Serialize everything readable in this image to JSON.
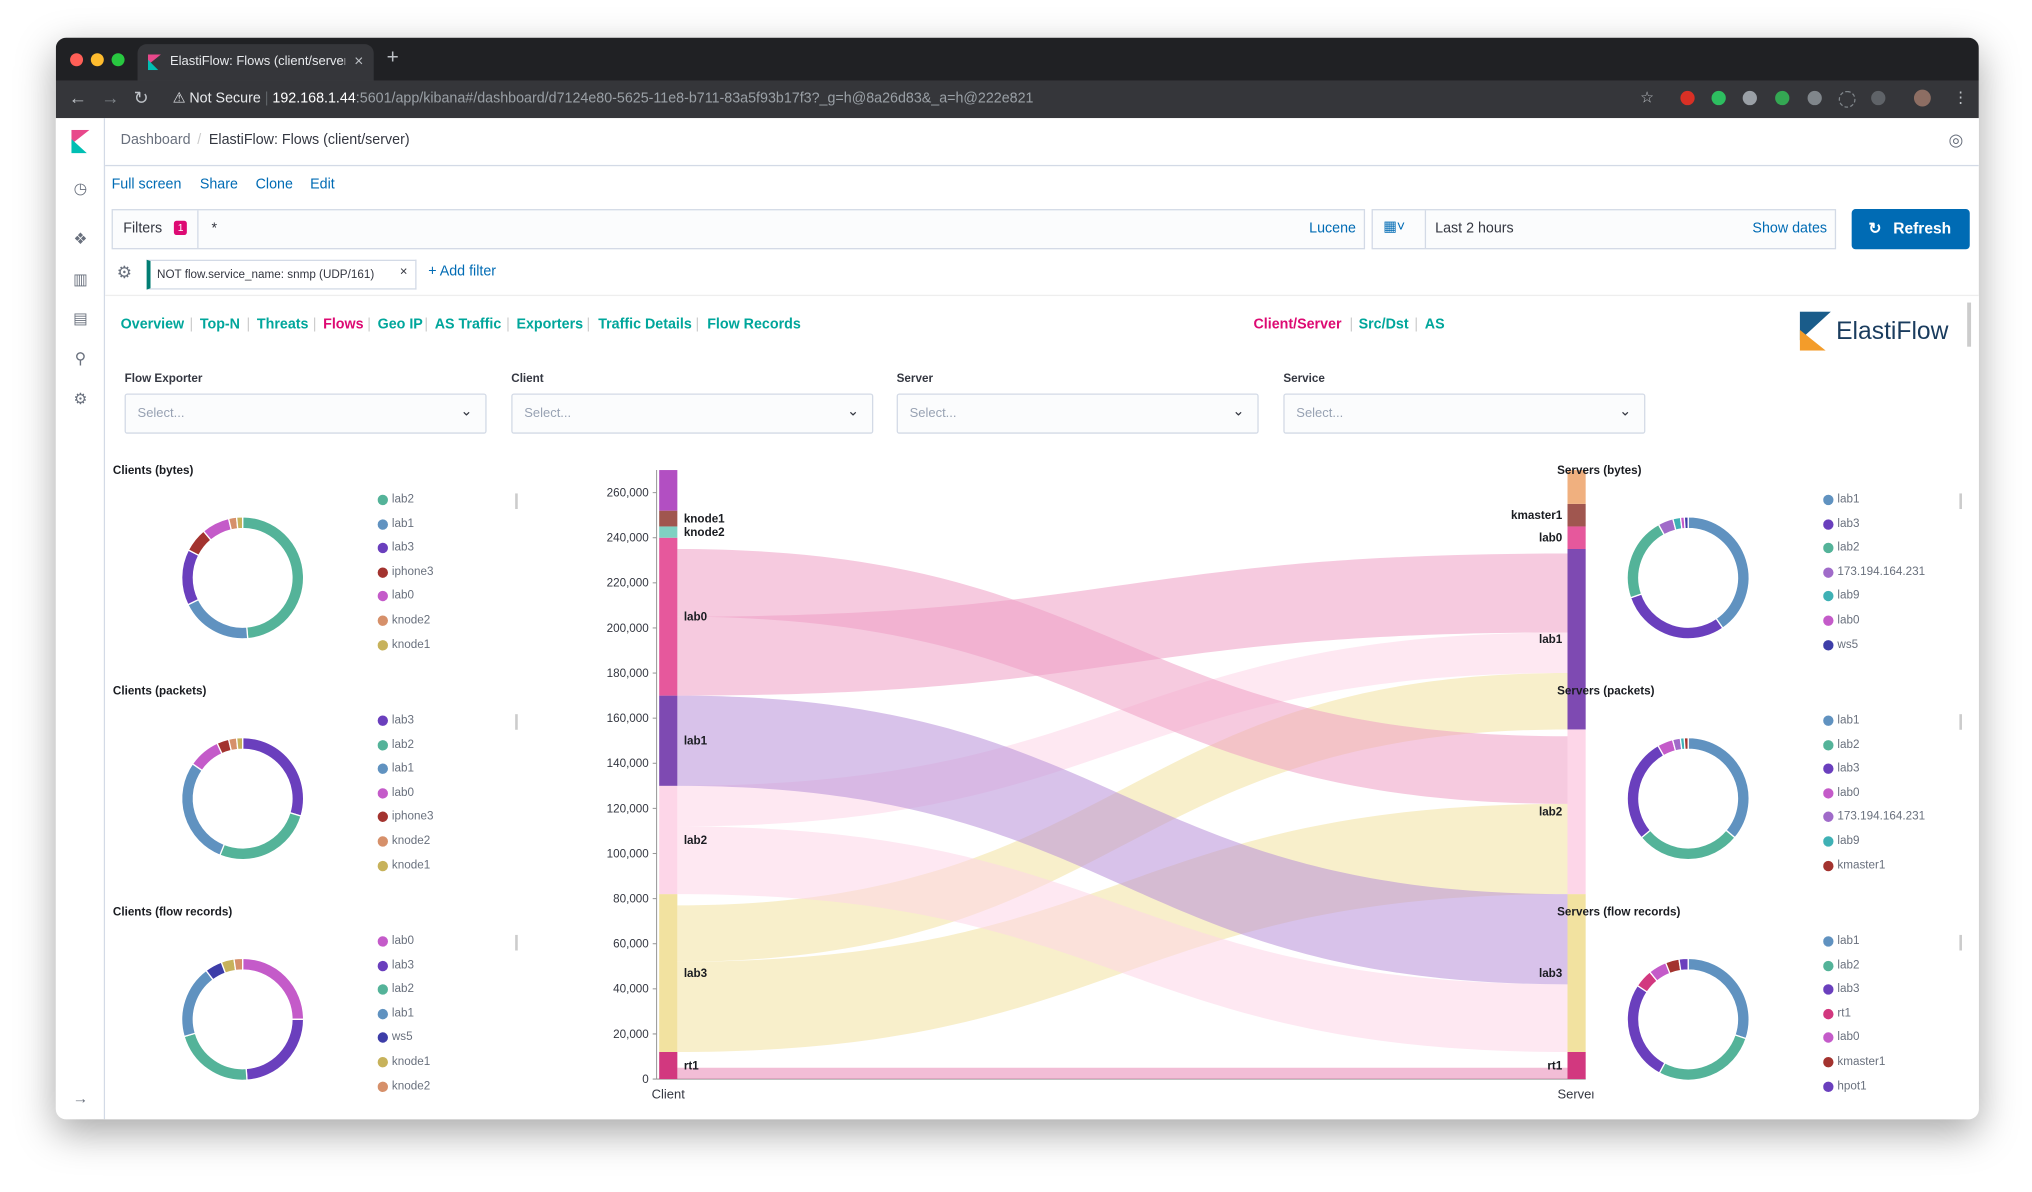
{
  "browser": {
    "tab_title": "ElastiFlow: Flows (client/server",
    "new_tab": "+",
    "security": "Not Secure",
    "url_host": "192.168.1.44",
    "url_path": ":5601/app/kibana#/dashboard/d7124e80-5625-11e8-b711-83a5f93b17f3?_g=h@8a26d83&_a=h@222e821"
  },
  "breadcrumb": {
    "root": "Dashboard",
    "current": "ElastiFlow: Flows (client/server)"
  },
  "menu": {
    "fullscreen": "Full screen",
    "share": "Share",
    "clone": "Clone",
    "edit": "Edit"
  },
  "query": {
    "filters_label": "Filters",
    "filters_count": "1",
    "value": "*",
    "language": "Lucene"
  },
  "time": {
    "range": "Last 2 hours",
    "show_dates": "Show dates",
    "refresh": "Refresh"
  },
  "filter_pill": {
    "text": "NOT flow.service_name: snmp (UDP/161)",
    "add": "+ Add filter"
  },
  "dash_nav": {
    "left": [
      "Overview",
      "Top-N",
      "Threats",
      "Flows",
      "Geo IP",
      "AS Traffic",
      "Exporters",
      "Traffic Details",
      "Flow Records"
    ],
    "active": "Flows",
    "right": [
      "Client/Server",
      "Src/Dst",
      "AS"
    ],
    "right_active": "Client/Server",
    "logo": "ElastiFlow"
  },
  "controls": [
    {
      "label": "Flow Exporter",
      "placeholder": "Select..."
    },
    {
      "label": "Client",
      "placeholder": "Select..."
    },
    {
      "label": "Server",
      "placeholder": "Select..."
    },
    {
      "label": "Service",
      "placeholder": "Select..."
    }
  ],
  "colors": {
    "link": "#006bb4",
    "accent": "#00a69b",
    "active": "#dd0a73",
    "refresh": "#006bb4"
  },
  "chart_data": [
    {
      "type": "pie",
      "title": "Clients (bytes)",
      "donut": true,
      "labels": [
        "lab2",
        "lab1",
        "lab3",
        "iphone3",
        "lab0",
        "knode2",
        "knode1"
      ],
      "values": [
        46,
        18,
        14,
        6,
        7,
        2,
        1.5
      ],
      "colors": [
        "#54b399",
        "#6092c0",
        "#6a3fbd",
        "#a3332f",
        "#c45bc9",
        "#d6906a",
        "#c7b25b"
      ]
    },
    {
      "type": "pie",
      "title": "Clients (packets)",
      "donut": true,
      "labels": [
        "lab3",
        "lab2",
        "lab1",
        "lab0",
        "iphone3",
        "knode2",
        "knode1"
      ],
      "values": [
        28,
        25,
        27,
        8,
        3,
        2,
        1.5
      ],
      "colors": [
        "#6a3fbd",
        "#54b399",
        "#6092c0",
        "#c45bc9",
        "#a3332f",
        "#d6906a",
        "#c7b25b"
      ]
    },
    {
      "type": "pie",
      "title": "Clients (flow records)",
      "donut": true,
      "labels": [
        "lab0",
        "lab3",
        "lab2",
        "lab1",
        "ws5",
        "knode1",
        "knode2"
      ],
      "values": [
        22,
        21,
        19,
        17,
        4,
        3,
        2
      ],
      "colors": [
        "#c45bc9",
        "#6a3fbd",
        "#54b399",
        "#6092c0",
        "#3d3da8",
        "#c7b25b",
        "#d6906a"
      ]
    },
    {
      "type": "pie",
      "title": "Servers (bytes)",
      "donut": true,
      "labels": [
        "lab1",
        "lab3",
        "lab2",
        "173.194.164.231",
        "lab9",
        "lab0",
        "ws5"
      ],
      "values": [
        40,
        29,
        22,
        4,
        2,
        1,
        1
      ],
      "colors": [
        "#6092c0",
        "#6a3fbd",
        "#54b399",
        "#a06bc9",
        "#3fb1b5",
        "#c45bc9",
        "#3d3da8"
      ]
    },
    {
      "type": "pie",
      "title": "Servers (packets)",
      "donut": true,
      "labels": [
        "lab1",
        "lab2",
        "lab3",
        "lab0",
        "173.194.164.231",
        "lab9",
        "kmaster1"
      ],
      "values": [
        35,
        27,
        27,
        4,
        2,
        1,
        1
      ],
      "colors": [
        "#6092c0",
        "#54b399",
        "#6a3fbd",
        "#c45bc9",
        "#a06bc9",
        "#3fb1b5",
        "#a3332f"
      ]
    },
    {
      "type": "pie",
      "title": "Servers (flow records)",
      "donut": true,
      "labels": [
        "lab1",
        "lab2",
        "lab3",
        "rt1",
        "lab0",
        "kmaster1",
        "hpot1"
      ],
      "values": [
        25,
        23,
        22,
        4,
        4,
        3,
        2
      ],
      "colors": [
        "#6092c0",
        "#54b399",
        "#6a3fbd",
        "#d2387f",
        "#c45bc9",
        "#a3332f",
        "#6a3fbd"
      ]
    },
    {
      "type": "sankey",
      "x_labels": [
        "Client",
        "Server"
      ],
      "ylim": [
        0,
        270000
      ],
      "yticks": [
        "0",
        "20,000",
        "40,000",
        "60,000",
        "80,000",
        "100,000",
        "120,000",
        "140,000",
        "160,000",
        "180,000",
        "200,000",
        "220,000",
        "240,000",
        "260,000"
      ],
      "ytick_values": [
        0,
        20000,
        40000,
        60000,
        80000,
        100000,
        120000,
        140000,
        160000,
        180000,
        200000,
        220000,
        240000,
        260000
      ],
      "left_nodes": [
        {
          "name": "rt1",
          "value": 12000,
          "color": "#d2387f"
        },
        {
          "name": "lab3",
          "value": 70000,
          "color": "#f2e2a0"
        },
        {
          "name": "lab2",
          "value": 48000,
          "color": "#fdd6e8"
        },
        {
          "name": "lab1",
          "value": 40000,
          "color": "#7e4ab2"
        },
        {
          "name": "lab0",
          "value": 70000,
          "color": "#e6589c"
        },
        {
          "name": "knode2",
          "value": 5000,
          "color": "#7fd1c2"
        },
        {
          "name": "knode1",
          "value": 7000,
          "color": "#a0564f"
        },
        {
          "name": "",
          "value": 18000,
          "color": "#b24fc2"
        }
      ],
      "right_nodes": [
        {
          "name": "rt1",
          "value": 12000,
          "color": "#d2387f"
        },
        {
          "name": "lab3",
          "value": 70000,
          "color": "#f2e2a0"
        },
        {
          "name": "lab2",
          "value": 73000,
          "color": "#fdd6e8"
        },
        {
          "name": "lab1",
          "value": 80000,
          "color": "#7e4ab2"
        },
        {
          "name": "lab0",
          "value": 10000,
          "color": "#e6589c"
        },
        {
          "name": "kmaster1",
          "value": 10000,
          "color": "#a0564f"
        },
        {
          "name": "",
          "value": 15000,
          "color": "#f0b07f"
        }
      ],
      "links": [
        {
          "from": "lab3",
          "to": "lab2",
          "value": 40000,
          "color": "#f2e2a0"
        },
        {
          "from": "lab3",
          "to": "lab1",
          "value": 25000,
          "color": "#f2e2a0"
        },
        {
          "from": "lab2",
          "to": "lab3",
          "value": 30000,
          "color": "#fdd6e8"
        },
        {
          "from": "lab2",
          "to": "lab1",
          "value": 18000,
          "color": "#fdd6e8"
        },
        {
          "from": "lab1",
          "to": "lab3",
          "value": 40000,
          "color": "#b890d8"
        },
        {
          "from": "lab0",
          "to": "lab1",
          "value": 35000,
          "color": "#ef9fc5"
        },
        {
          "from": "lab0",
          "to": "lab2",
          "value": 30000,
          "color": "#ef9fc5"
        },
        {
          "from": "rt1",
          "to": "rt1",
          "value": 5000,
          "color": "#e887b5"
        }
      ]
    }
  ]
}
